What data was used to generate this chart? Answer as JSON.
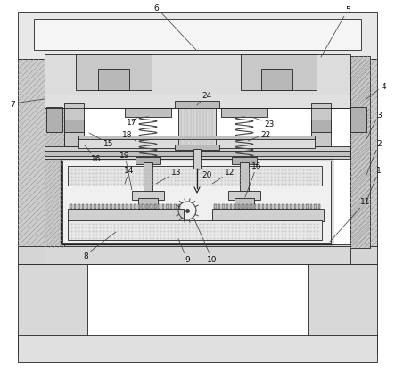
{
  "bg_color": "#ffffff",
  "lc": "#222222",
  "gray1": "#cccccc",
  "gray2": "#e0e0e0",
  "gray3": "#b0b0b0",
  "gray4": "#d8d8d8",
  "hatch_color": "#888888"
}
